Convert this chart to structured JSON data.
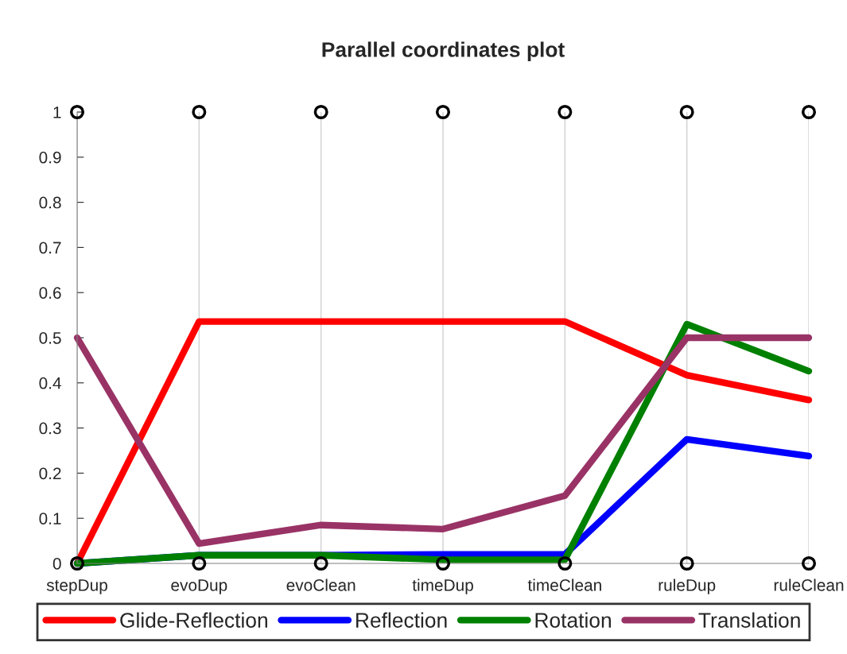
{
  "chart_data": {
    "type": "line",
    "title": "Parallel coordinates plot",
    "categories": [
      "stepDup",
      "evoDup",
      "evoClean",
      "timeDup",
      "timeClean",
      "ruleDup",
      "ruleClean"
    ],
    "series": [
      {
        "name": "Glide-Reflection",
        "color": "#ff0000",
        "values": [
          0,
          0.536,
          0.536,
          0.536,
          0.536,
          0.417,
          0.362
        ]
      },
      {
        "name": "Reflection",
        "color": "#0000ff",
        "values": [
          0,
          0.018,
          0.018,
          0.02,
          0.02,
          0.275,
          0.238
        ]
      },
      {
        "name": "Rotation",
        "color": "#008000",
        "values": [
          0,
          0.018,
          0.018,
          0.008,
          0.008,
          0.53,
          0.426
        ]
      },
      {
        "name": "Translation",
        "color": "#993366",
        "values": [
          0.5,
          0.044,
          0.085,
          0.076,
          0.15,
          0.5,
          0.5
        ]
      },
      {
        "type": "scatter",
        "color": "#000000",
        "marker": "circle",
        "values": [
          0,
          0,
          0,
          0,
          0,
          0,
          0
        ]
      },
      {
        "type": "scatter",
        "color": "#000000",
        "marker": "circle",
        "values": [
          1,
          1,
          1,
          1,
          1,
          1,
          1
        ]
      }
    ],
    "ylim": [
      0,
      1
    ],
    "yticks": [
      0,
      0.1,
      0.2,
      0.3,
      0.4,
      0.5,
      0.6,
      0.7,
      0.8,
      0.9,
      1
    ],
    "grid": "x",
    "legend": "bottom"
  }
}
